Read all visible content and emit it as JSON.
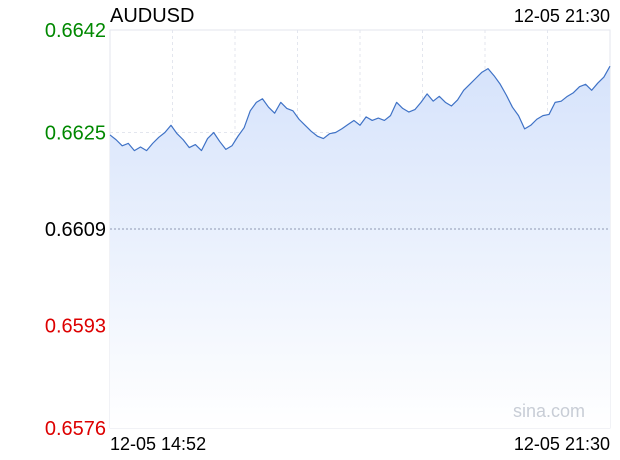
{
  "chart_data": {
    "type": "area",
    "title": "AUDUSD",
    "timestamp": "12-05 21:30",
    "watermark": "sina.com",
    "x_labels": [
      "12-05 14:52",
      "12-05 21:30"
    ],
    "x_range": [
      "12-05 14:52",
      "12-05 21:30"
    ],
    "ylim": [
      0.6576,
      0.6642
    ],
    "reference": 0.6609,
    "y_ticks": [
      {
        "label": "0.6642",
        "value": 0.6642,
        "color": "#008800"
      },
      {
        "label": "0.6625",
        "value": 0.6625,
        "color": "#008800"
      },
      {
        "label": "0.6609",
        "value": 0.6609,
        "color": "#000000"
      },
      {
        "label": "0.6593",
        "value": 0.6593,
        "color": "#dd0000"
      },
      {
        "label": "0.6576",
        "value": 0.6576,
        "color": "#dd0000"
      }
    ],
    "grid": true,
    "line_color": "#3f72c6",
    "fill_color": "#d6e3fb",
    "series": [
      {
        "values": [
          0.66246,
          0.66238,
          0.66228,
          0.66232,
          0.6622,
          0.66226,
          0.6622,
          0.66232,
          0.66242,
          0.6625,
          0.66262,
          0.66248,
          0.66238,
          0.66225,
          0.6623,
          0.6622,
          0.6624,
          0.6625,
          0.66235,
          0.66222,
          0.66228,
          0.66244,
          0.66258,
          0.66286,
          0.663,
          0.66306,
          0.66292,
          0.66282,
          0.663,
          0.6629,
          0.66286,
          0.66272,
          0.66262,
          0.66252,
          0.66244,
          0.6624,
          0.66248,
          0.6625,
          0.66256,
          0.66263,
          0.6627,
          0.66262,
          0.66276,
          0.6627,
          0.66274,
          0.6627,
          0.66278,
          0.663,
          0.6629,
          0.66284,
          0.66288,
          0.663,
          0.66314,
          0.66302,
          0.6631,
          0.663,
          0.66294,
          0.66304,
          0.6632,
          0.6633,
          0.6634,
          0.6635,
          0.66356,
          0.66344,
          0.6633,
          0.66312,
          0.66292,
          0.66278,
          0.66256,
          0.66262,
          0.66272,
          0.66278,
          0.6628,
          0.663,
          0.66302,
          0.6631,
          0.66316,
          0.66326,
          0.6633,
          0.6632,
          0.66332,
          0.66342,
          0.6636
        ]
      }
    ]
  }
}
